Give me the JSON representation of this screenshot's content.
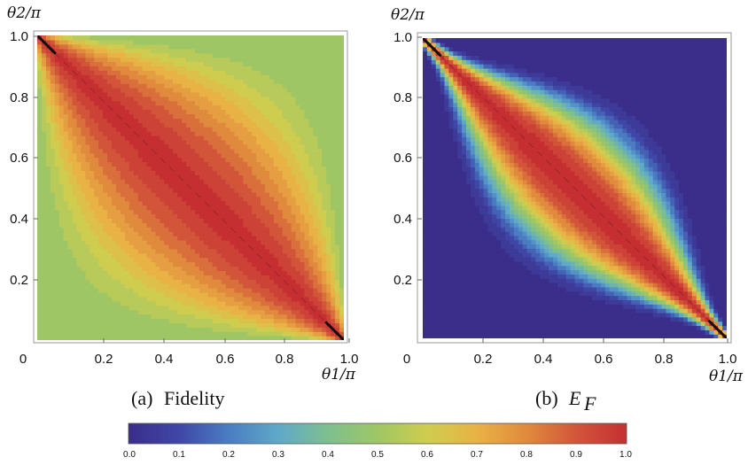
{
  "figure": {
    "panels": [
      {
        "caption_prefix": "(a)",
        "caption": "Fidelity",
        "xlabel": "θ1/π",
        "ylabel": "θ2/π",
        "xticks": [
          "0",
          "0.2",
          "0.4",
          "0.6",
          "0.8",
          "1.0"
        ],
        "yticks": [
          "0.2",
          "0.4",
          "0.6",
          "0.8",
          "1.0"
        ]
      },
      {
        "caption_prefix": "(b)",
        "caption": "E",
        "caption_sub": "F",
        "xlabel": "θ1/π",
        "ylabel": "θ2/π",
        "xticks": [
          "0",
          "0.2",
          "0.4",
          "0.6",
          "0.8",
          "1.0"
        ],
        "yticks": [
          "0.2",
          "0.4",
          "0.6",
          "0.8",
          "1.0"
        ]
      }
    ],
    "colorbar": {
      "ticks": [
        "0.0",
        "0.1",
        "0.2",
        "0.3",
        "0.4",
        "0.5",
        "0.6",
        "0.7",
        "0.8",
        "0.9",
        "1.0"
      ],
      "stops": [
        "#3b2d8a",
        "#3f46a6",
        "#4a7cc2",
        "#5fa9c9",
        "#7ebf8f",
        "#9fc665",
        "#cfcd4f",
        "#e9b245",
        "#e08a3d",
        "#d2553a",
        "#c62f32"
      ]
    }
  },
  "chart_data": [
    {
      "type": "heatmap",
      "title": "Fidelity",
      "xlabel": "θ1/π",
      "ylabel": "θ2/π",
      "xlim": [
        0,
        1
      ],
      "ylim": [
        0,
        1
      ],
      "value_range": [
        0,
        1
      ],
      "description_values": {
        "background_value": 0.5,
        "max_value_along_diagonal": 1.0,
        "min_value": 0.5
      }
    },
    {
      "type": "heatmap",
      "title": "E_F",
      "xlabel": "θ1/π",
      "ylabel": "θ2/π",
      "xlim": [
        0,
        1
      ],
      "ylim": [
        0,
        1
      ],
      "value_range": [
        0,
        1
      ],
      "description_values": {
        "background_value": 0.0,
        "max_value_along_diagonal": 1.0,
        "min_value": 0.0
      }
    }
  ]
}
